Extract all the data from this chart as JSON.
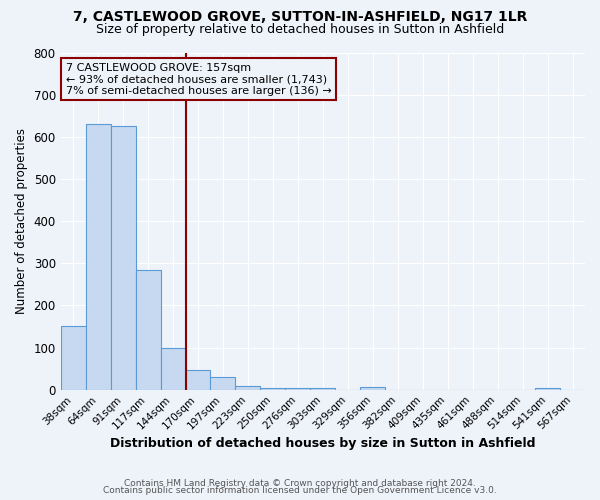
{
  "title": "7, CASTLEWOOD GROVE, SUTTON-IN-ASHFIELD, NG17 1LR",
  "subtitle": "Size of property relative to detached houses in Sutton in Ashfield",
  "xlabel": "Distribution of detached houses by size in Sutton in Ashfield",
  "ylabel": "Number of detached properties",
  "bar_labels": [
    "38sqm",
    "64sqm",
    "91sqm",
    "117sqm",
    "144sqm",
    "170sqm",
    "197sqm",
    "223sqm",
    "250sqm",
    "276sqm",
    "303sqm",
    "329sqm",
    "356sqm",
    "382sqm",
    "409sqm",
    "435sqm",
    "461sqm",
    "488sqm",
    "514sqm",
    "541sqm",
    "567sqm"
  ],
  "bar_values": [
    150,
    630,
    625,
    285,
    100,
    47,
    30,
    10,
    5,
    5,
    5,
    0,
    7,
    0,
    0,
    0,
    0,
    0,
    0,
    5,
    0
  ],
  "bar_color": "#c6d9f0",
  "bar_edge_color": "#5b9bd5",
  "vline_color": "#8b0000",
  "annotation_title": "7 CASTLEWOOD GROVE: 157sqm",
  "annotation_line1": "← 93% of detached houses are smaller (1,743)",
  "annotation_line2": "7% of semi-detached houses are larger (136) →",
  "annotation_box_color": "#8b0000",
  "ylim": [
    0,
    800
  ],
  "yticks": [
    0,
    100,
    200,
    300,
    400,
    500,
    600,
    700,
    800
  ],
  "footer1": "Contains HM Land Registry data © Crown copyright and database right 2024.",
  "footer2": "Contains public sector information licensed under the Open Government Licence v3.0.",
  "bg_color": "#eef2f9",
  "grid_color": "#ffffff",
  "title_fontsize": 10,
  "subtitle_fontsize": 9
}
